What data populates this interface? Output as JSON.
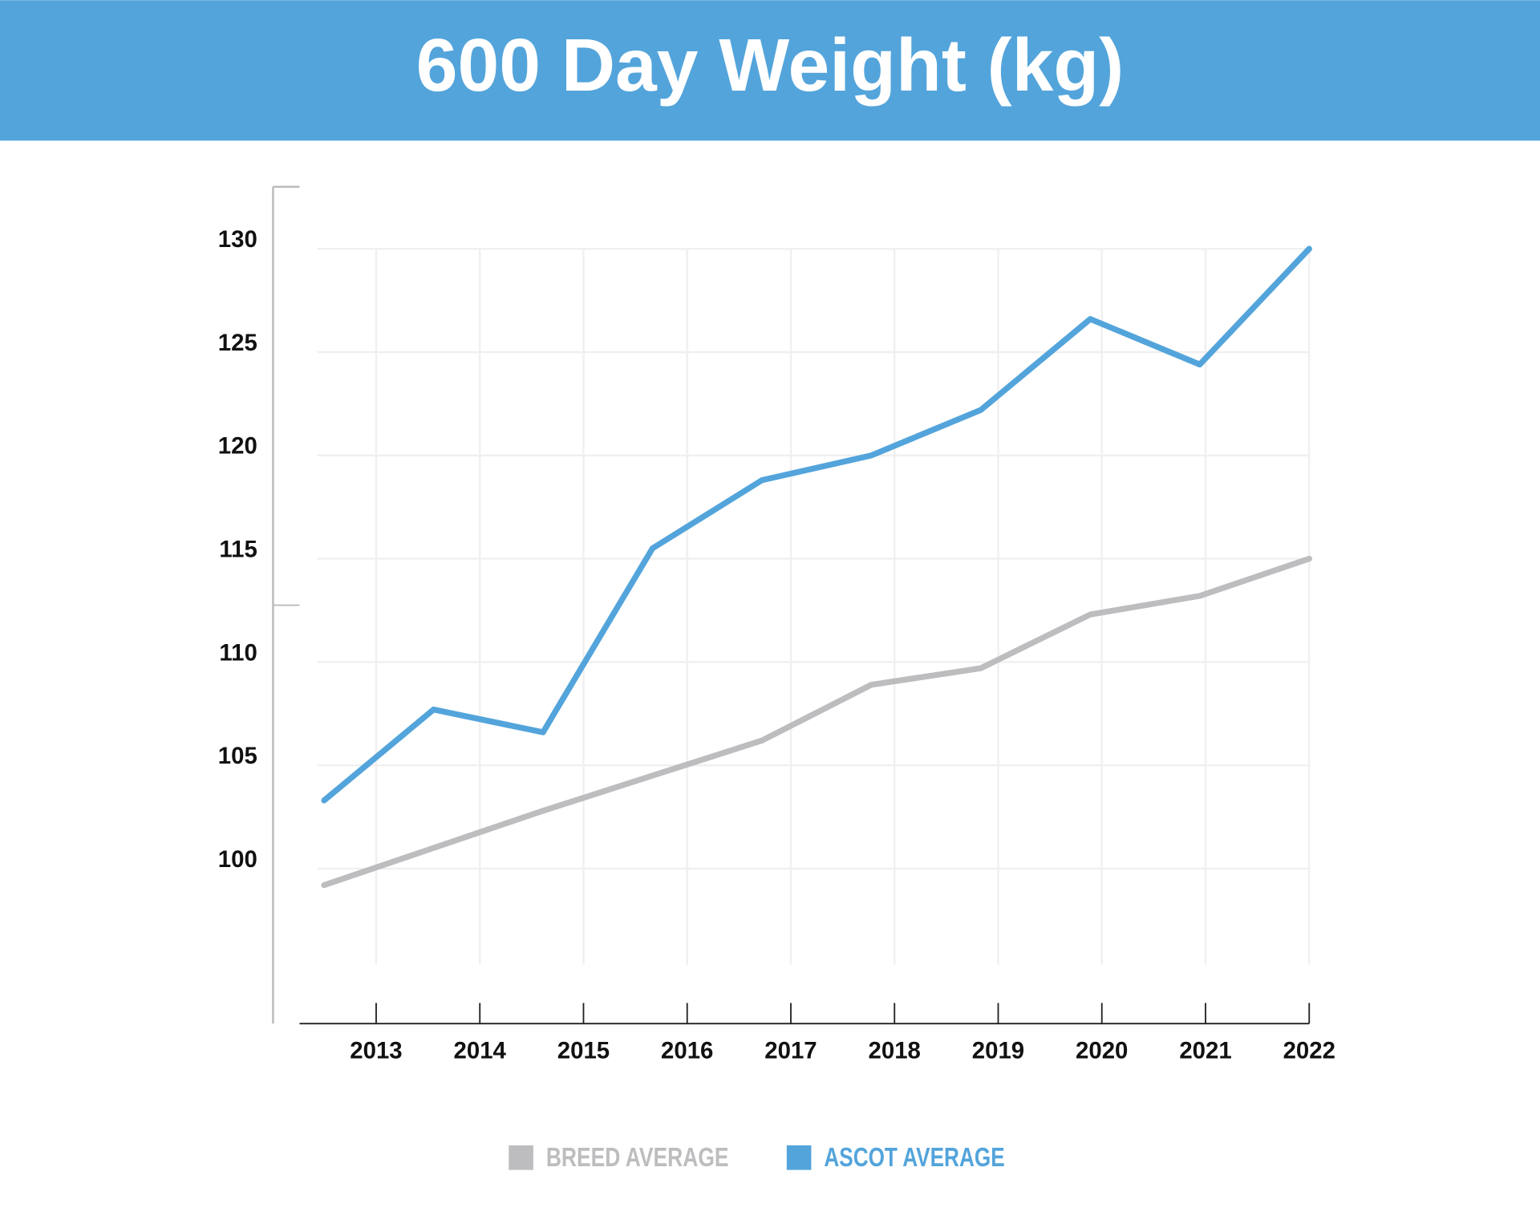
{
  "chart_data": {
    "type": "line",
    "title": "600 Day Weight (kg)",
    "categories": [
      "2013",
      "2014",
      "2015",
      "2016",
      "2017",
      "2018",
      "2019",
      "2020",
      "2021",
      "2022"
    ],
    "series": [
      {
        "name": "BREED AVERAGE",
        "color": "#bdbdc0",
        "values": [
          99.2,
          101.0,
          102.8,
          104.5,
          106.2,
          108.9,
          109.7,
          112.3,
          113.2,
          115.0
        ]
      },
      {
        "name": "ASCOT AVERAGE",
        "color": "#53a4db",
        "values": [
          103.3,
          107.7,
          106.6,
          115.5,
          118.8,
          120.0,
          122.2,
          126.6,
          124.4,
          130.0
        ]
      }
    ],
    "ylim": [
      92.5,
      133
    ],
    "yticks": [
      100,
      105,
      110,
      115,
      120,
      125,
      130
    ],
    "grid": true,
    "legend": "bottom",
    "header_color": "#53a4db"
  }
}
